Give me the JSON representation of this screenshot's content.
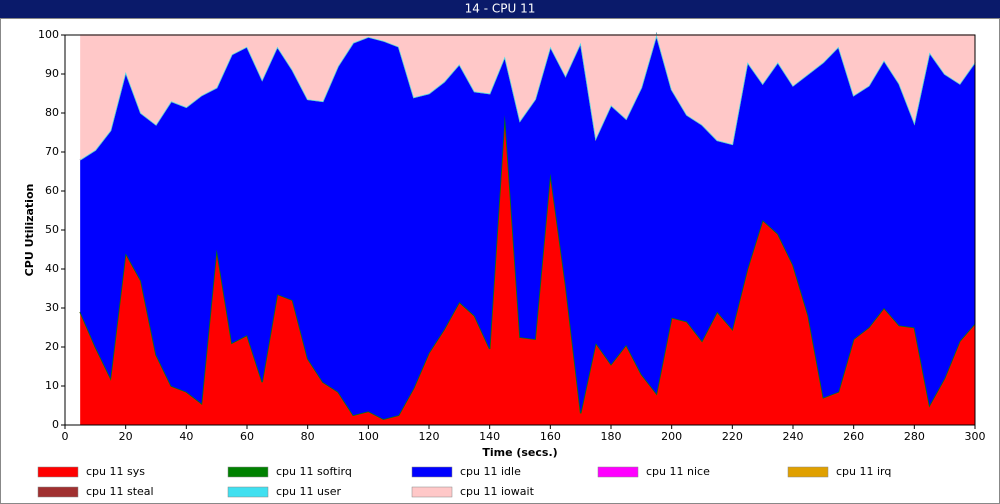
{
  "chart_data": {
    "type": "stacked_area",
    "title": "14 - CPU 11",
    "xlabel": "Time (secs.)",
    "ylabel": "CPU Utilization",
    "x": [
      5,
      10,
      15,
      20,
      25,
      30,
      35,
      40,
      45,
      50,
      55,
      60,
      65,
      70,
      75,
      80,
      85,
      90,
      95,
      100,
      105,
      110,
      115,
      120,
      125,
      130,
      135,
      140,
      145,
      150,
      155,
      160,
      165,
      170,
      175,
      180,
      185,
      190,
      195,
      200,
      205,
      210,
      215,
      220,
      225,
      230,
      235,
      240,
      245,
      250,
      255,
      260,
      265,
      270,
      275,
      280,
      285,
      290,
      295,
      300
    ],
    "xlim": [
      0,
      300
    ],
    "xticks": [
      0,
      20,
      40,
      60,
      80,
      100,
      120,
      140,
      160,
      180,
      200,
      220,
      240,
      260,
      280,
      300
    ],
    "ylim": [
      0,
      100
    ],
    "yticks": [
      0,
      10,
      20,
      30,
      40,
      50,
      60,
      70,
      80,
      90,
      100
    ],
    "series": [
      {
        "name": "cpu 11 sys",
        "color": "#ff0000",
        "values": [
          29,
          20,
          12,
          44,
          37,
          18,
          10,
          8.5,
          5.5,
          45,
          21,
          23,
          11,
          33.5,
          32,
          17,
          11,
          8.5,
          2.5,
          3.5,
          1.5,
          2.5,
          9.5,
          18.5,
          24.5,
          31.5,
          28,
          19.5,
          79.5,
          22.5,
          22,
          64.5,
          36,
          3,
          21,
          15.5,
          20.5,
          13,
          8,
          27.5,
          26.5,
          21.5,
          29,
          24.5,
          40,
          52.5,
          49,
          41,
          28,
          7,
          8.5,
          22,
          25,
          30,
          25.5,
          25,
          5,
          12,
          21.5,
          26
        ]
      },
      {
        "name": "cpu 11 softirq",
        "color": "#008000",
        "values": [
          0,
          0,
          0,
          0,
          0,
          0,
          0,
          0,
          0,
          0,
          0,
          0,
          0,
          0,
          0,
          0,
          0,
          0,
          0,
          0,
          0,
          0,
          0,
          0,
          0,
          0,
          0,
          0,
          0,
          0,
          0,
          0,
          0,
          0,
          0,
          0,
          0,
          0,
          0,
          0,
          0,
          0,
          0,
          0,
          0,
          0,
          0,
          0,
          0,
          0,
          0,
          0,
          0,
          0,
          0,
          0,
          0,
          0,
          0,
          0
        ]
      },
      {
        "name": "cpu 11 idle",
        "color": "#0000ff",
        "values": [
          39,
          50.5,
          63.5,
          46.5,
          43,
          59,
          73,
          73,
          79,
          41.5,
          74,
          74,
          77.5,
          63.5,
          59,
          66.5,
          72,
          83.5,
          95.5,
          96,
          97,
          94.5,
          74.5,
          66.5,
          63.5,
          61,
          57.5,
          65.5,
          15,
          55.5,
          61.5,
          32.5,
          53.5,
          95,
          52.5,
          66.5,
          58,
          73.5,
          92,
          58.5,
          53,
          55.5,
          44,
          47.5,
          53,
          35,
          44,
          46,
          62,
          86,
          88.5,
          62.5,
          62,
          63.5,
          62,
          52.5,
          90.5,
          78,
          66,
          67
        ]
      },
      {
        "name": "cpu 11 nice",
        "color": "#ff00ff",
        "values": [
          0,
          0,
          0,
          0,
          0,
          0,
          0,
          0,
          0,
          0,
          0,
          0,
          0,
          0,
          0,
          0,
          0,
          0,
          0,
          0,
          0,
          0,
          0,
          0,
          0,
          0,
          0,
          0,
          0,
          0,
          0,
          0,
          0,
          0,
          0,
          0,
          0,
          0,
          0,
          0,
          0,
          0,
          0,
          0,
          0,
          0,
          0,
          0,
          0,
          0,
          0,
          0,
          0,
          0,
          0,
          0,
          0,
          0,
          0,
          0
        ]
      },
      {
        "name": "cpu 11 irq",
        "color": "#e0a000",
        "values": [
          0,
          0,
          0,
          0,
          0,
          0,
          0,
          0,
          0,
          0,
          0,
          0,
          0,
          0,
          0,
          0,
          0,
          0,
          0,
          0,
          0,
          0,
          0,
          0,
          0,
          0,
          0,
          0,
          0,
          0,
          0,
          0,
          0,
          0,
          0,
          0,
          0,
          0,
          0,
          0,
          0,
          0,
          0,
          0,
          0,
          0,
          0,
          0,
          0,
          0,
          0,
          0,
          0,
          0,
          0,
          0,
          0,
          0,
          0,
          0
        ]
      },
      {
        "name": "cpu 11 steal",
        "color": "#a03030",
        "values": [
          0,
          0,
          0,
          0,
          0,
          0,
          0,
          0,
          0,
          0,
          0,
          0,
          0,
          0,
          0,
          0,
          0,
          0,
          0,
          0,
          0,
          0,
          0,
          0,
          0,
          0,
          0,
          0,
          0,
          0,
          0,
          0,
          0,
          0,
          0,
          0,
          0,
          0,
          0,
          0,
          0,
          0,
          0,
          0,
          0,
          0,
          0,
          0,
          0,
          0,
          0,
          0,
          0,
          0,
          0,
          0,
          0,
          0,
          0,
          0
        ]
      },
      {
        "name": "cpu 11 user",
        "color": "#40e0f0",
        "values": [
          0,
          0,
          0,
          0,
          0,
          0,
          0,
          0,
          0,
          0,
          0,
          0,
          0,
          0,
          0,
          0,
          0,
          0,
          0,
          0,
          0,
          0,
          0,
          0,
          0,
          0,
          0,
          0,
          0,
          0,
          0,
          0,
          0,
          0,
          0,
          0,
          0,
          0,
          0,
          0,
          0,
          0,
          0,
          0,
          0,
          0,
          0,
          0,
          0,
          0,
          0,
          0,
          0,
          0,
          0,
          0,
          0,
          0,
          0,
          0
        ]
      },
      {
        "name": "cpu 11 iowait",
        "color": "#ffc8c8",
        "values": [
          32,
          29.5,
          24.5,
          9.5,
          20,
          23,
          17,
          18.5,
          15.5,
          13.5,
          5,
          3,
          11.5,
          3,
          9,
          16.5,
          17,
          8,
          2,
          0.5,
          1.5,
          3,
          16,
          15,
          12,
          7.5,
          14.5,
          15,
          5.5,
          22,
          16.5,
          3,
          10.5,
          2,
          26.5,
          18,
          21.5,
          13.5,
          0,
          14,
          20.5,
          23,
          27,
          28,
          7,
          12.5,
          7,
          13,
          10,
          7,
          3,
          15.5,
          13,
          6.5,
          12.5,
          22.5,
          4.5,
          10,
          12.5,
          7
        ]
      }
    ]
  }
}
